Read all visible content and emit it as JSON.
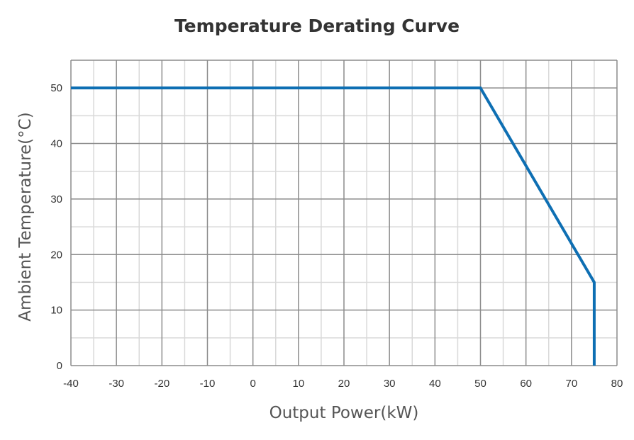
{
  "chart_data": {
    "type": "line",
    "title": "Temperature Derating Curve",
    "xlabel": "Output Power(kW)",
    "ylabel": "Ambient Temperature(°C)",
    "xlim": [
      -40,
      80
    ],
    "ylim": [
      0,
      55
    ],
    "xticks": [
      -40,
      -30,
      -20,
      -10,
      0,
      10,
      20,
      30,
      40,
      50,
      60,
      70,
      80
    ],
    "yticks": [
      0,
      10,
      20,
      30,
      40,
      50
    ],
    "grid": true,
    "series": [
      {
        "color": "#0e6fb3",
        "x": [
          -40,
          50,
          75,
          75
        ],
        "y": [
          50,
          50,
          15,
          0
        ]
      }
    ]
  }
}
